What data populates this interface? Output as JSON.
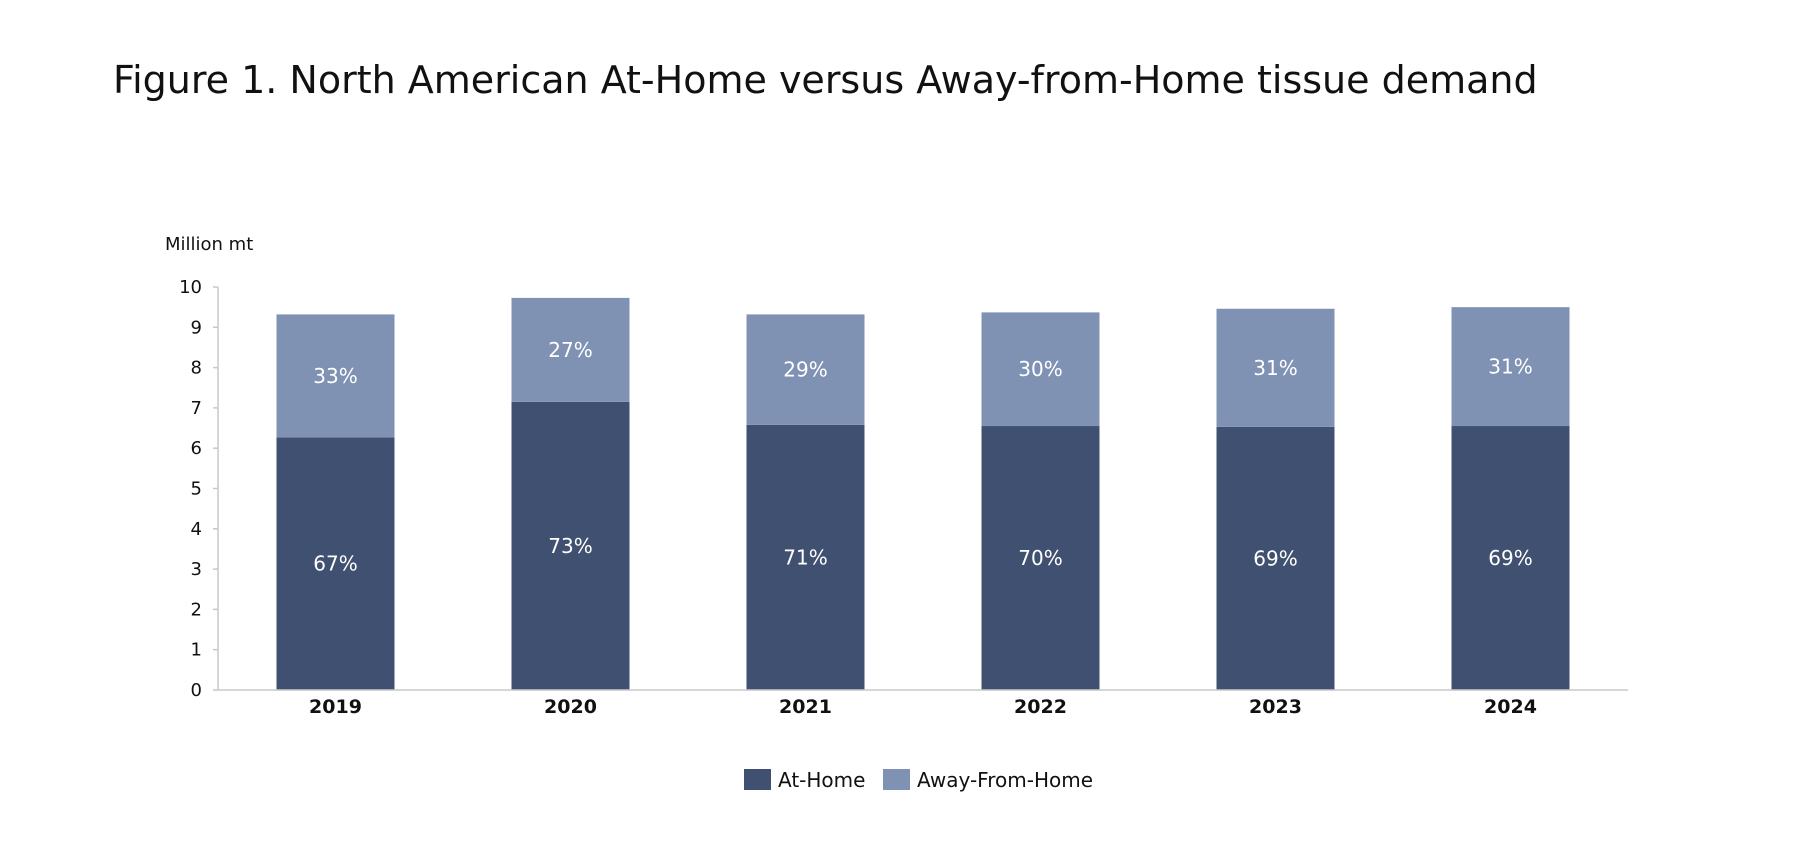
{
  "title": "Figure 1. North American At-Home versus Away-from-Home tissue demand",
  "chart_data": {
    "type": "bar",
    "stacked": true,
    "title": "Figure 1. North American At-Home versus Away-from-Home tissue demand",
    "ylabel": "Million mt",
    "xlabel": "",
    "ylim": [
      0,
      10
    ],
    "yticks": [
      "0",
      "1",
      "2",
      "3",
      "4",
      "5",
      "6",
      "7",
      "8",
      "9",
      "10"
    ],
    "categories": [
      "2019",
      "2020",
      "2021",
      "2022",
      "2023",
      "2024"
    ],
    "series": [
      {
        "name": "At-Home",
        "color": "#405070",
        "values": [
          6.27,
          7.15,
          6.58,
          6.55,
          6.53,
          6.55
        ],
        "labels": [
          "67%",
          "73%",
          "71%",
          "70%",
          "69%",
          "69%"
        ]
      },
      {
        "name": "Away-From-Home",
        "color": "#8092b4",
        "values": [
          3.05,
          2.58,
          2.74,
          2.82,
          2.93,
          2.95
        ],
        "labels": [
          "33%",
          "27%",
          "29%",
          "30%",
          "31%",
          "31%"
        ]
      }
    ],
    "grid": false,
    "legend_position": "bottom"
  }
}
